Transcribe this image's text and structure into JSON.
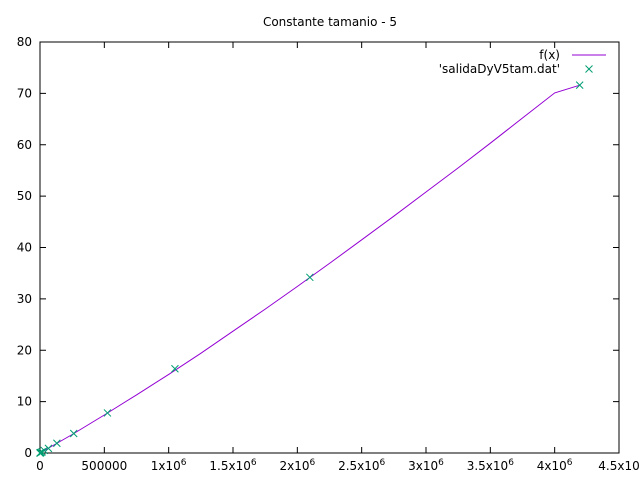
{
  "chart_data": {
    "type": "scatter",
    "title": "Constante tamanio - 5",
    "xlabel": "",
    "ylabel": "",
    "xlim": [
      0,
      4500000
    ],
    "ylim": [
      0,
      80
    ],
    "x_ticks": [
      {
        "value": 0,
        "label": "0"
      },
      {
        "value": 500000,
        "label": "500000"
      },
      {
        "value": 1000000,
        "label": "1x10",
        "sup": "6"
      },
      {
        "value": 1500000,
        "label": "1.5x10",
        "sup": "6"
      },
      {
        "value": 2000000,
        "label": "2x10",
        "sup": "6"
      },
      {
        "value": 2500000,
        "label": "2.5x10",
        "sup": "6"
      },
      {
        "value": 3000000,
        "label": "3x10",
        "sup": "6"
      },
      {
        "value": 3500000,
        "label": "3.5x10",
        "sup": "6"
      },
      {
        "value": 4000000,
        "label": "4x10",
        "sup": "6"
      },
      {
        "value": 4500000,
        "label": "4.5x10"
      }
    ],
    "y_ticks": [
      0,
      10,
      20,
      30,
      40,
      50,
      60,
      70,
      80
    ],
    "grid": false,
    "legend_position": "top-right",
    "series": [
      {
        "name": "f(x)",
        "kind": "line",
        "color": "#9400d3",
        "x": [
          0,
          250000,
          500000,
          750000,
          1000000,
          1250000,
          1500000,
          1750000,
          2000000,
          2250000,
          2500000,
          2750000,
          3000000,
          3250000,
          3500000,
          3750000,
          4000000,
          4194304
        ],
        "y": [
          0,
          3.6,
          7.4,
          11.3,
          15.3,
          19.4,
          23.7,
          28.0,
          32.4,
          36.9,
          41.5,
          46.1,
          50.8,
          55.5,
          60.3,
          65.2,
          70.1,
          71.6
        ]
      },
      {
        "name": "'salidaDyV5tam.dat'",
        "kind": "points",
        "color": "#009e73",
        "x": [
          0,
          1024,
          2048,
          4096,
          8192,
          16384,
          32768,
          65536,
          131072,
          262144,
          524288,
          1048576,
          2097152,
          4194304
        ],
        "y": [
          0,
          0.02,
          0.03,
          0.06,
          0.11,
          0.22,
          0.5,
          0.9,
          1.9,
          3.8,
          7.8,
          16.4,
          34.2,
          71.6
        ]
      }
    ]
  }
}
